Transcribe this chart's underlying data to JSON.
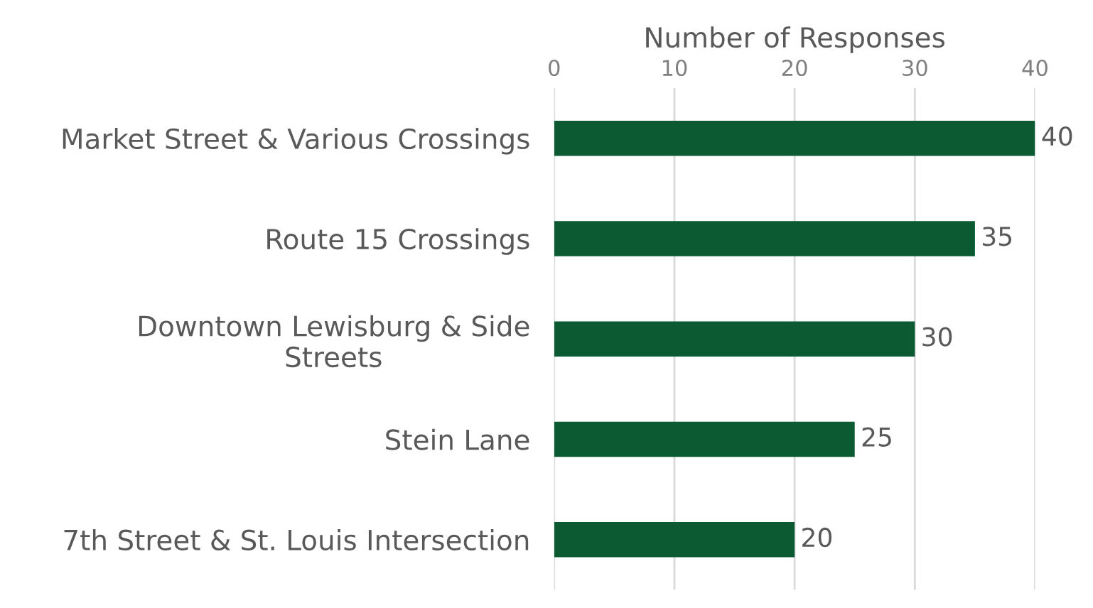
{
  "chart_data": {
    "type": "bar",
    "orientation": "horizontal",
    "xlabel": "Number of Responses",
    "categories": [
      "Market Street & Various Crossings",
      "Route 15 Crossings",
      "Downtown Lewisburg & Side\nStreets",
      "Stein Lane",
      "7th Street & St. Louis Intersection"
    ],
    "values": [
      40,
      35,
      30,
      25,
      20
    ],
    "color": "#0b5a32",
    "xlim": [
      0,
      40
    ],
    "xticks": [
      0,
      10,
      20,
      30,
      40
    ],
    "grid": "x",
    "data_labels": true
  }
}
